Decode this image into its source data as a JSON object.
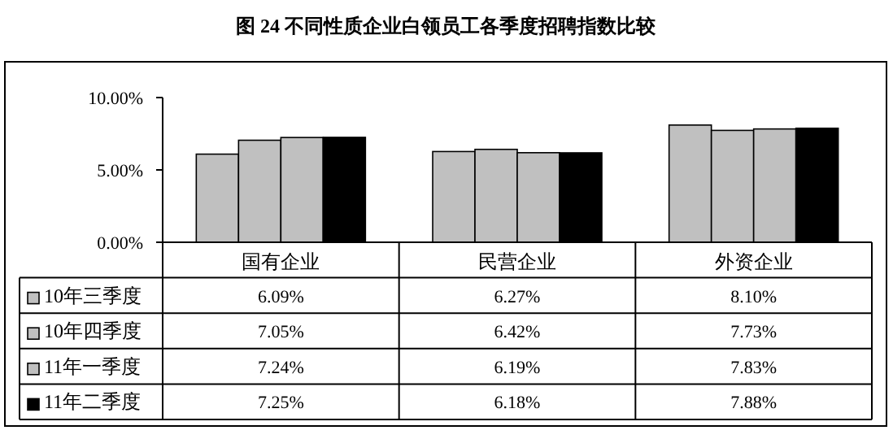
{
  "chart_data": {
    "type": "bar",
    "title": "图 24    不同性质企业白领员工各季度招聘指数比较",
    "categories": [
      "国有企业",
      "民营企业",
      "外资企业"
    ],
    "series": [
      {
        "name": "10年三季度",
        "color": "#c0c0c0",
        "values": [
          6.09,
          6.27,
          8.1
        ],
        "value_labels": [
          "6.09%",
          "6.27%",
          "8.10%"
        ]
      },
      {
        "name": "10年四季度",
        "color": "#c0c0c0",
        "values": [
          7.05,
          6.42,
          7.73
        ],
        "value_labels": [
          "7.05%",
          "6.42%",
          "7.73%"
        ]
      },
      {
        "name": "11年一季度",
        "color": "#c0c0c0",
        "values": [
          7.24,
          6.19,
          7.83
        ],
        "value_labels": [
          "7.24%",
          "6.19%",
          "7.83%"
        ]
      },
      {
        "name": "11年二季度",
        "color": "#000000",
        "values": [
          7.25,
          6.18,
          7.88
        ],
        "value_labels": [
          "7.25%",
          "6.18%",
          "7.88%"
        ]
      }
    ],
    "ylim": [
      0,
      10
    ],
    "yticks": [
      {
        "value": 0,
        "label": "0.00%"
      },
      {
        "value": 5,
        "label": "5.00%"
      },
      {
        "value": 10,
        "label": "10.00%"
      }
    ],
    "grid": false,
    "legend": "bottom left"
  }
}
